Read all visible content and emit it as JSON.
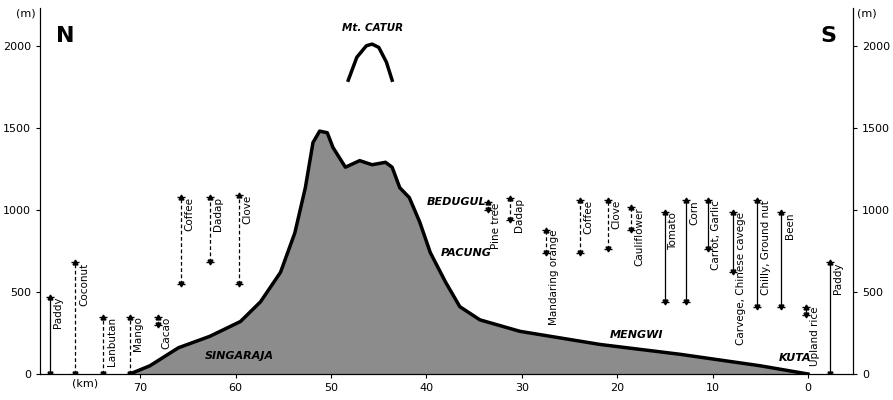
{
  "chart_data": {
    "type": "area",
    "xlabel": "(km)",
    "ylabel": "(m)",
    "direction_labels": {
      "left": "N",
      "right": "S"
    },
    "x": [
      71.1,
      69,
      66,
      62.7,
      59.5,
      57.4,
      55.3,
      53.8,
      52.7,
      51.9,
      51.2,
      50.4,
      49.8,
      48.5,
      47,
      45.7,
      44.3,
      43.6,
      42.8,
      41.8,
      40.7,
      39.6,
      38,
      36.5,
      34.4,
      30.2,
      21.8,
      13.4,
      5,
      0
    ],
    "values": [
      0,
      50,
      160,
      230,
      320,
      440,
      620,
      860,
      1135,
      1410,
      1480,
      1470,
      1380,
      1260,
      1300,
      1275,
      1290,
      1260,
      1135,
      1075,
      925,
      740,
      560,
      410,
      330,
      260,
      180,
      120,
      50,
      0
    ],
    "color": "#8c8c8c",
    "xlim": [
      80.5,
      -4.7
    ],
    "xticks": [
      70,
      60,
      50,
      40,
      30,
      20,
      10,
      0
    ],
    "ylim": [
      0,
      2230
    ],
    "yticks": [
      0,
      500,
      1000,
      1500,
      2000
    ],
    "y2lim": [
      0,
      2230
    ],
    "y2ticks": [
      0,
      500,
      1000,
      1500,
      2000
    ],
    "peak": {
      "label": "Mt. CATUR",
      "x": [
        48.2,
        47.3,
        46.3,
        45.7,
        45,
        44.2,
        43.6
      ],
      "values": [
        1790,
        1930,
        2000,
        2010,
        1990,
        1900,
        1790
      ]
    },
    "places": [
      {
        "label": "SINGARAJA",
        "x": 63.2,
        "y": 110
      },
      {
        "label": "BEDUGUL",
        "x": 40.0,
        "y": 1050
      },
      {
        "label": "PACUNG",
        "x": 38.5,
        "y": 740
      },
      {
        "label": "MENGWI",
        "x": 20.8,
        "y": 240
      },
      {
        "label": "KUTA",
        "x": 3.1,
        "y": 95
      }
    ],
    "crop_ranges": [
      {
        "name": "Paddy",
        "x": 79.5,
        "low": 0,
        "high": 470,
        "line_style": "solid"
      },
      {
        "name": "Coconut",
        "x": 76.8,
        "low": 0,
        "high": 680,
        "line_style": "dashed"
      },
      {
        "name": "Lanbutan",
        "x": 73.9,
        "low": 0,
        "high": 350,
        "line_style": "dashed"
      },
      {
        "name": "Mango",
        "x": 71.1,
        "low": 0,
        "high": 350,
        "line_style": "dashed"
      },
      {
        "name": "Cacao",
        "x": 68.2,
        "low": 300,
        "high": 350,
        "line_style": "dashed"
      },
      {
        "name": "Coffee",
        "x": 65.7,
        "low": 550,
        "high": 1080,
        "line_style": "dashed"
      },
      {
        "name": "Dadap",
        "x": 62.7,
        "low": 680,
        "high": 1080,
        "line_style": "dashed"
      },
      {
        "name": "Clove",
        "x": 59.7,
        "low": 550,
        "high": 1090,
        "line_style": "dashed"
      },
      {
        "name": "Pine tree",
        "x": 33.6,
        "low": 1000,
        "high": 1045,
        "line_style": "dashed"
      },
      {
        "name": "Dadap",
        "x": 31.2,
        "low": 940,
        "high": 1075,
        "line_style": "dashed"
      },
      {
        "name": "Mandaring orange",
        "x": 27.5,
        "low": 740,
        "high": 880,
        "line_style": "dashed"
      },
      {
        "name": "Coffee",
        "x": 23.9,
        "low": 740,
        "high": 1060,
        "line_style": "dashed"
      },
      {
        "name": "Clove",
        "x": 21,
        "low": 760,
        "high": 1060,
        "line_style": "dashed"
      },
      {
        "name": "Cauliflower",
        "x": 18.6,
        "low": 880,
        "high": 1015,
        "line_style": "dashed"
      },
      {
        "name": "Tomato",
        "x": 15,
        "low": 440,
        "high": 985,
        "line_style": "solid"
      },
      {
        "name": "Corn",
        "x": 12.8,
        "low": 440,
        "high": 1060,
        "line_style": "solid"
      },
      {
        "name": "Carrot, Garlic",
        "x": 10.5,
        "low": 760,
        "high": 1060,
        "line_style": "solid"
      },
      {
        "name": "Carvege, Chinese cavege",
        "x": 7.9,
        "low": 620,
        "high": 985,
        "line_style": "solid"
      },
      {
        "name": "Chilly, Ground nut",
        "x": 5.3,
        "low": 410,
        "high": 1060,
        "line_style": "solid"
      },
      {
        "name": "Been",
        "x": 2.8,
        "low": 410,
        "high": 985,
        "line_style": "solid"
      },
      {
        "name": "Upland rice",
        "x": 0.2,
        "low": 360,
        "high": 410,
        "line_style": "solid"
      },
      {
        "name": "Paddy",
        "x": -2.3,
        "low": 0,
        "high": 680,
        "line_style": "solid"
      }
    ]
  }
}
